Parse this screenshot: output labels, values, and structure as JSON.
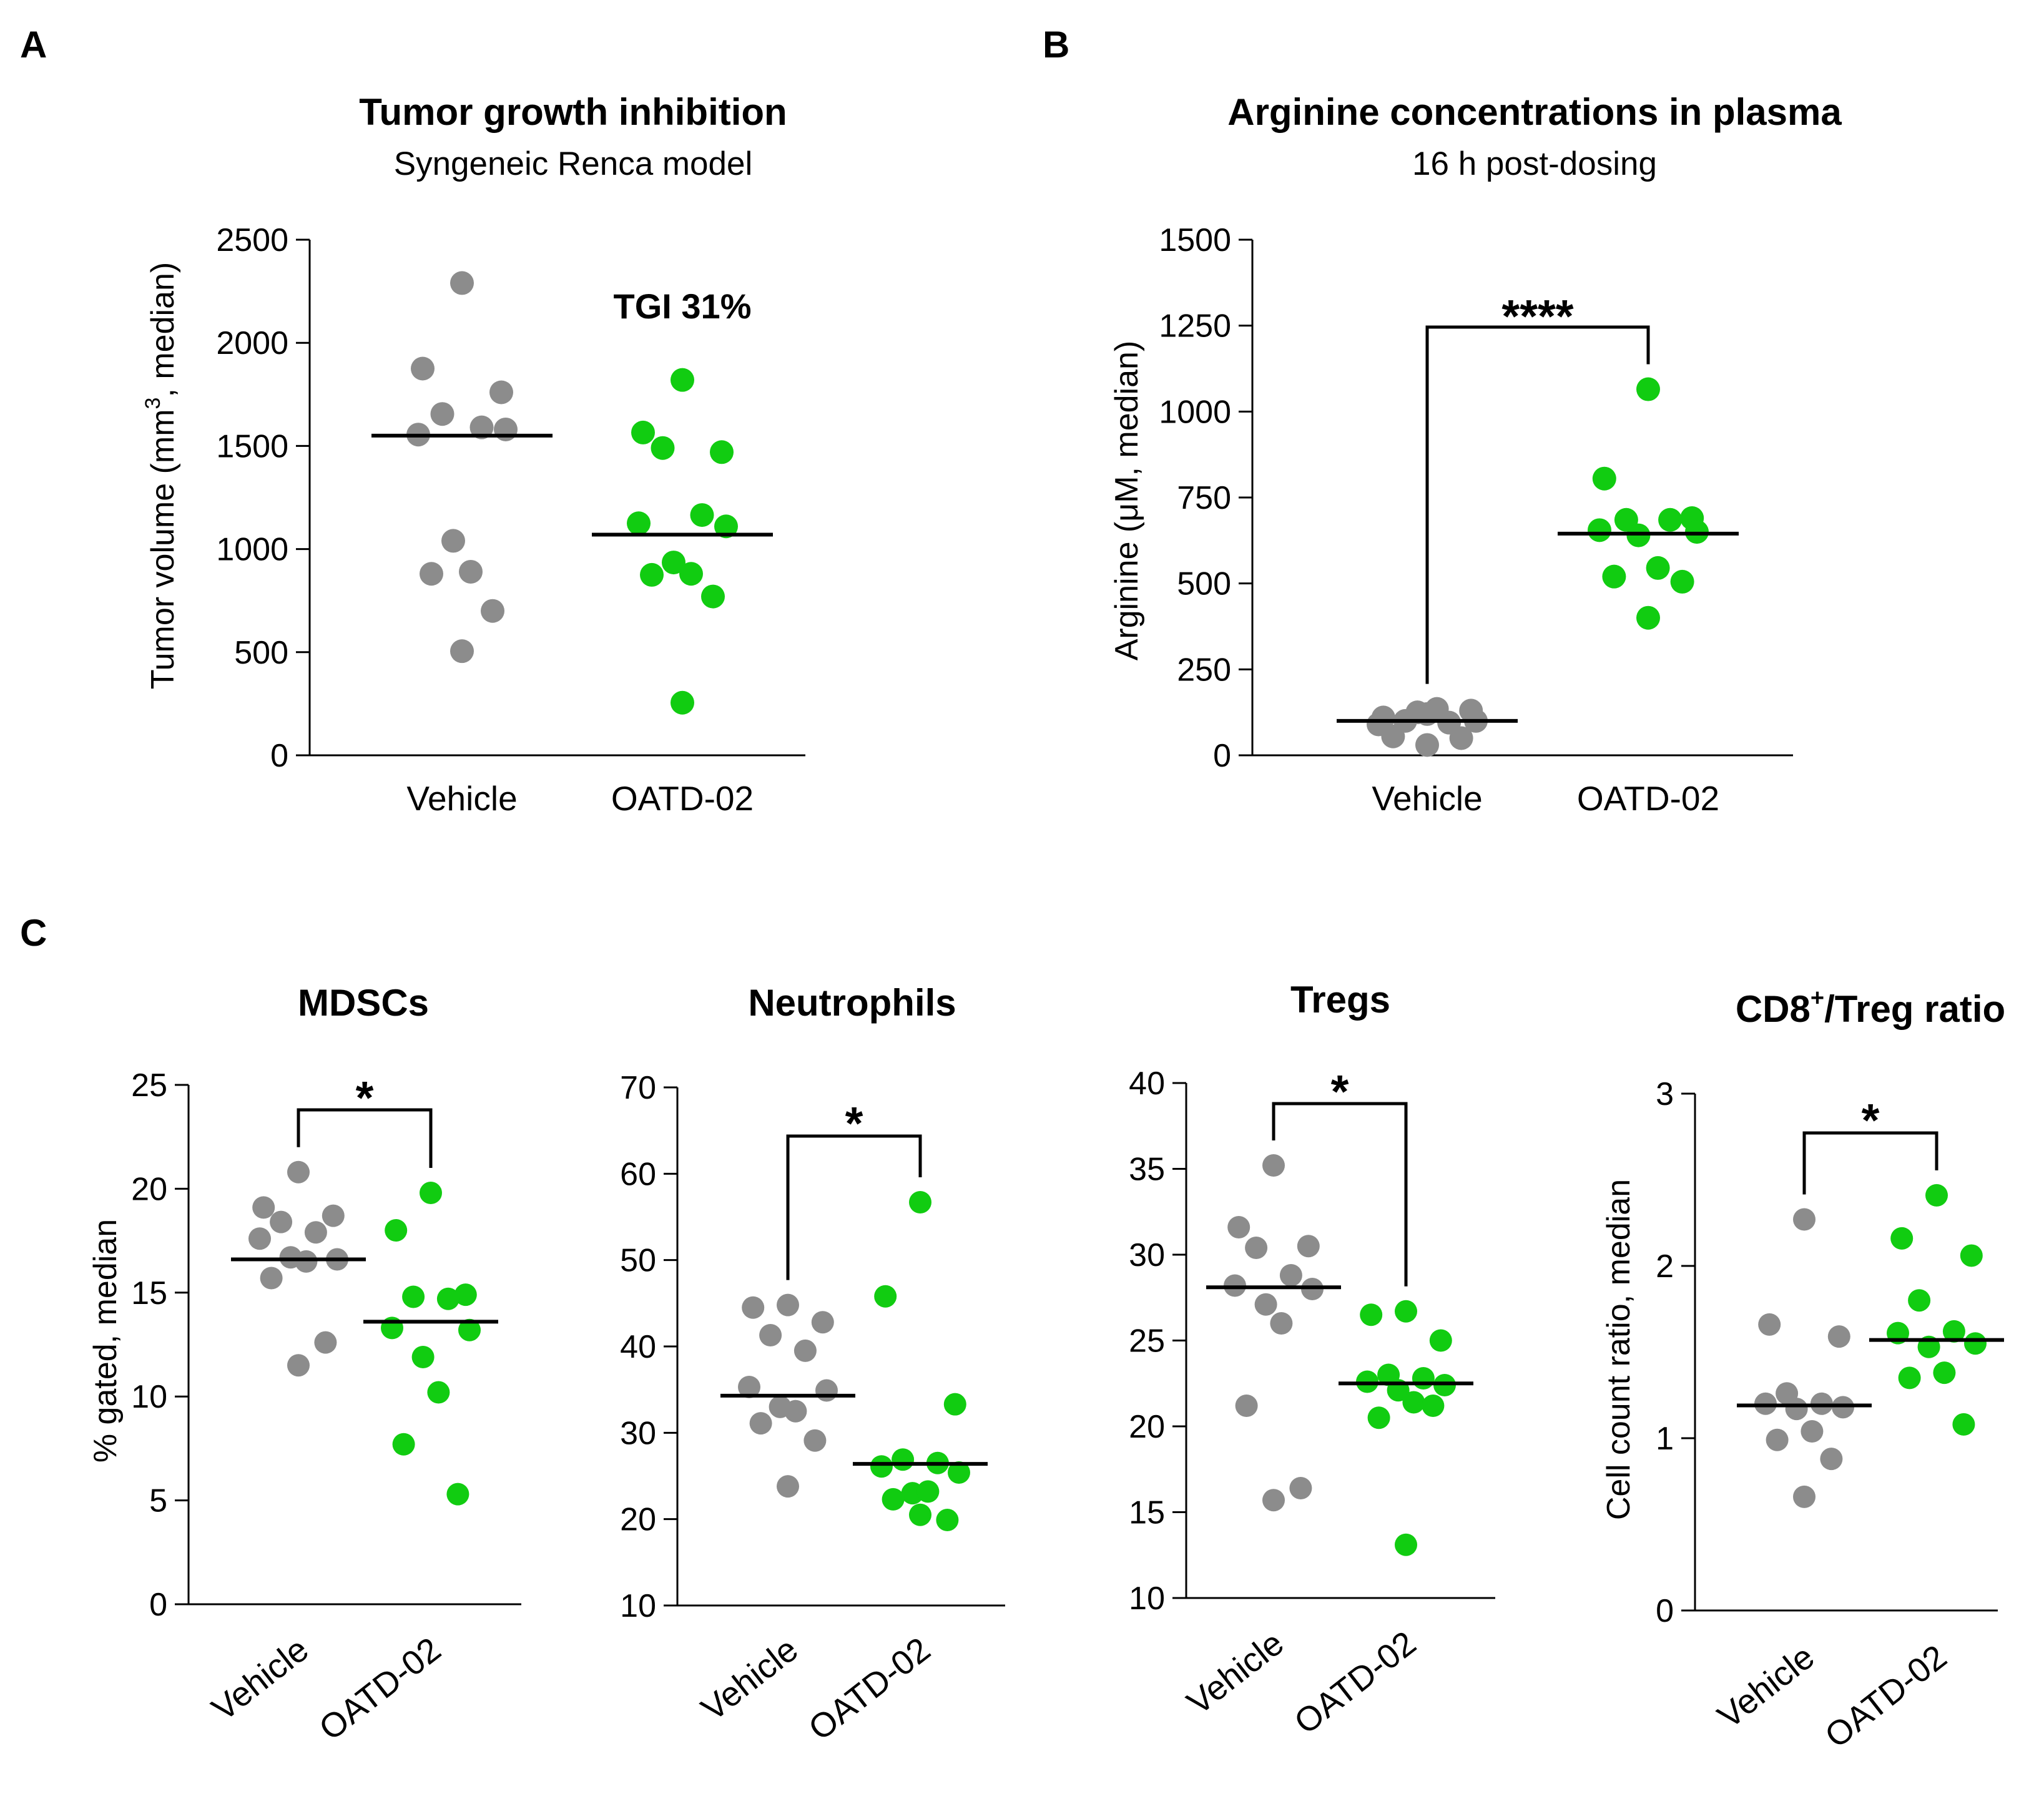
{
  "figure": {
    "panels": [
      {
        "id": "A",
        "label": "A"
      },
      {
        "id": "B",
        "label": "B"
      },
      {
        "id": "C",
        "label": "C"
      }
    ]
  },
  "colors": {
    "vehicle": "#8c8c8c",
    "treated": "#11cc11",
    "axis": "#000000",
    "median": "#000000"
  },
  "chart_data": [
    {
      "id": "A",
      "type": "scatter",
      "title": "Tumor growth inhibition",
      "subtitle": "Syngeneic Renca model",
      "ylabel_parts": [
        "Tumor volume (mm",
        "3",
        ", median)"
      ],
      "categories": [
        "Vehicle",
        "OATD-02"
      ],
      "ylim": [
        0,
        2500
      ],
      "yticks": [
        0,
        500,
        1000,
        1500,
        2000,
        2500
      ],
      "annotation": "TGI 31%",
      "series": [
        {
          "name": "Vehicle",
          "median": 1550,
          "values": [
            2290,
            1875,
            1760,
            1655,
            1590,
            1555,
            1580,
            1040,
            890,
            880,
            700,
            505
          ]
        },
        {
          "name": "OATD-02",
          "median": 1070,
          "values": [
            1820,
            1565,
            1470,
            1490,
            1165,
            1125,
            1110,
            935,
            880,
            875,
            770,
            255
          ]
        }
      ]
    },
    {
      "id": "B",
      "type": "scatter",
      "title": "Arginine concentrations in plasma",
      "subtitle": "16 h post-dosing",
      "ylabel": "Arginine (μM, median)",
      "categories": [
        "Vehicle",
        "OATD-02"
      ],
      "ylim": [
        0,
        1500
      ],
      "yticks": [
        0,
        250,
        500,
        750,
        1000,
        1250,
        1500
      ],
      "significance": "****",
      "series": [
        {
          "name": "Vehicle",
          "median": 100,
          "values": [
            120,
            110,
            130,
            100,
            95,
            90,
            100,
            125,
            135,
            55,
            50,
            30
          ]
        },
        {
          "name": "OATD-02",
          "median": 645,
          "values": [
            1065,
            805,
            690,
            685,
            685,
            655,
            650,
            640,
            545,
            520,
            505,
            400
          ]
        }
      ]
    },
    {
      "id": "C1",
      "type": "scatter",
      "title": "MDSCs",
      "ylabel": "% gated, median",
      "categories": [
        "Vehicle",
        "OATD-02"
      ],
      "ylim": [
        0,
        25
      ],
      "yticks": [
        0,
        5,
        10,
        15,
        20,
        25
      ],
      "significance": "*",
      "series": [
        {
          "name": "Vehicle",
          "median": 16.6,
          "values": [
            20.8,
            19.1,
            18.7,
            18.4,
            17.9,
            17.6,
            16.6,
            16.7,
            16.5,
            15.7,
            12.6,
            11.5
          ]
        },
        {
          "name": "OATD-02",
          "median": 13.6,
          "values": [
            19.8,
            18.0,
            14.9,
            14.8,
            14.7,
            13.3,
            13.2,
            11.9,
            10.2,
            7.7,
            5.3
          ]
        }
      ]
    },
    {
      "id": "C2",
      "type": "scatter",
      "title": "Neutrophils",
      "categories": [
        "Vehicle",
        "OATD-02"
      ],
      "ylim": [
        10,
        70
      ],
      "yticks": [
        10,
        20,
        30,
        40,
        50,
        60,
        70
      ],
      "significance": "*",
      "series": [
        {
          "name": "Vehicle",
          "median": 34.3,
          "values": [
            44.8,
            44.5,
            42.8,
            41.3,
            39.5,
            35.3,
            34.9,
            33.0,
            32.5,
            31.1,
            29.1,
            23.8
          ]
        },
        {
          "name": "OATD-02",
          "median": 26.4,
          "values": [
            56.7,
            45.8,
            33.3,
            26.9,
            26.5,
            26.1,
            25.4,
            23.0,
            23.2,
            22.3,
            19.9,
            20.5
          ]
        }
      ]
    },
    {
      "id": "C3",
      "type": "scatter",
      "title": "Tregs",
      "categories": [
        "Vehicle",
        "OATD-02"
      ],
      "ylim": [
        10,
        40
      ],
      "yticks": [
        10,
        15,
        20,
        25,
        30,
        35,
        40
      ],
      "significance": "*",
      "series": [
        {
          "name": "Vehicle",
          "median": 28.1,
          "values": [
            35.2,
            31.6,
            30.5,
            30.4,
            28.8,
            28.2,
            28.0,
            27.1,
            26.0,
            21.2,
            16.4,
            15.7
          ]
        },
        {
          "name": "OATD-02",
          "median": 22.5,
          "values": [
            26.7,
            26.5,
            25.0,
            23.0,
            22.8,
            22.6,
            22.4,
            22.1,
            21.4,
            20.5,
            21.2,
            13.1
          ]
        }
      ]
    },
    {
      "id": "C4",
      "type": "scatter",
      "title_parts": [
        "CD8",
        "+",
        "/Treg ratio"
      ],
      "ylabel": "Cell count ratio, median",
      "categories": [
        "Vehicle",
        "OATD-02"
      ],
      "ylim": [
        0,
        3
      ],
      "yticks": [
        0,
        1,
        2,
        3
      ],
      "significance": "*",
      "series": [
        {
          "name": "Vehicle",
          "median": 1.19,
          "values": [
            2.27,
            1.66,
            1.59,
            1.26,
            1.2,
            1.2,
            1.18,
            1.17,
            1.04,
            0.99,
            0.88,
            0.66
          ]
        },
        {
          "name": "OATD-02",
          "median": 1.57,
          "values": [
            2.41,
            2.16,
            2.06,
            1.8,
            1.62,
            1.61,
            1.55,
            1.53,
            1.38,
            1.35,
            1.08
          ]
        }
      ]
    }
  ]
}
